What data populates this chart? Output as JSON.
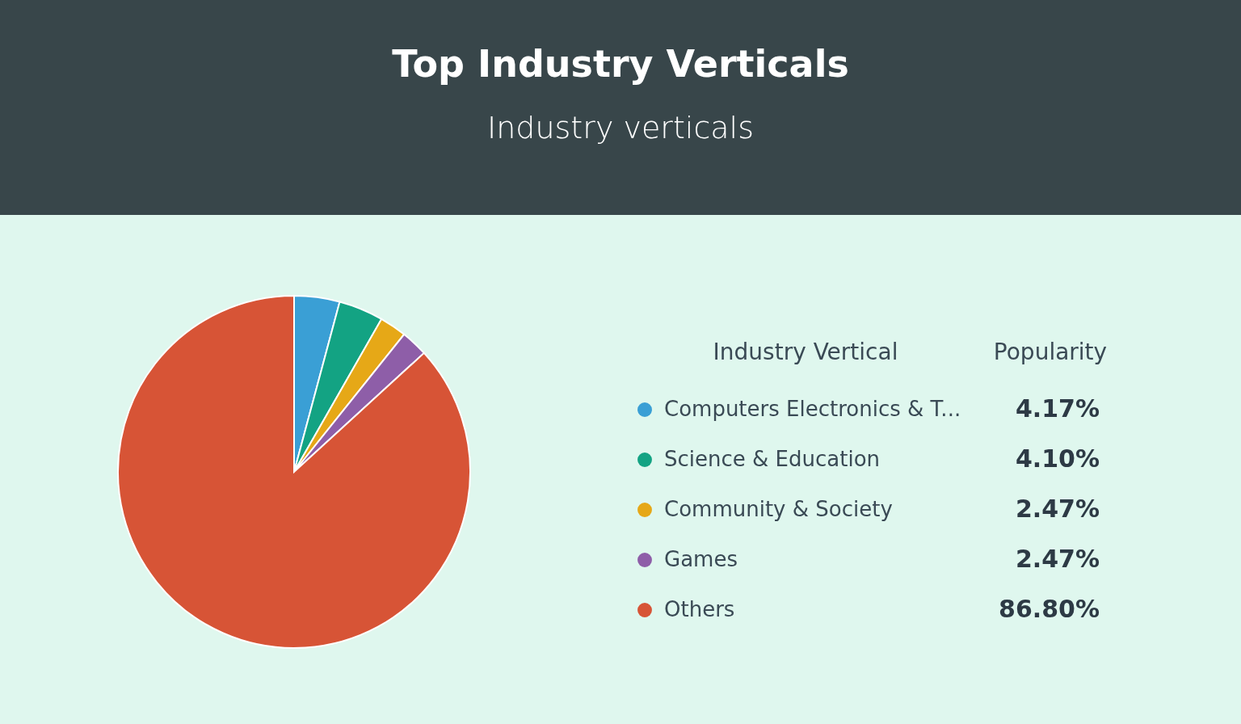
{
  "chart_data": {
    "type": "pie",
    "title": "Top Industry Verticals",
    "subtitle": "Industry verticals",
    "legend_title": "Industry Vertical",
    "annotations": [
      "Popularity"
    ],
    "legend": "right",
    "categories": [
      "Computers Electronics & T...",
      "Science & Education",
      "Community & Society",
      "Games",
      "Others"
    ],
    "values": [
      4.17,
      4.1,
      2.47,
      2.47,
      86.8
    ],
    "value_labels": [
      "4.17%",
      "4.10%",
      "2.47%",
      "2.47%",
      "86.80%"
    ],
    "colors": [
      "#3a9fd5",
      "#13a383",
      "#e6a817",
      "#8e5ea8",
      "#d75436"
    ]
  }
}
